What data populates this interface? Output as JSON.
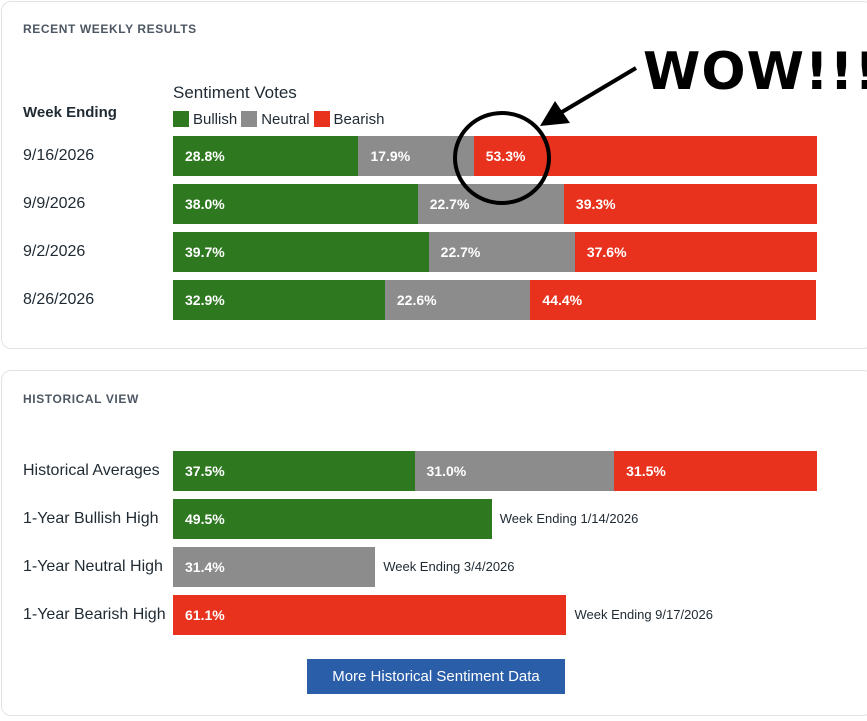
{
  "recent": {
    "section_title": "RECENT WEEKLY RESULTS",
    "week_ending_header": "Week Ending",
    "sentiment_header": "Sentiment Votes",
    "legend": [
      {
        "label": "Bullish",
        "color": "#2e7820"
      },
      {
        "label": "Neutral",
        "color": "#8c8c8c"
      },
      {
        "label": "Bearish",
        "color": "#e8321e"
      }
    ]
  },
  "historical": {
    "section_title": "HISTORICAL VIEW",
    "more_button_label": "More Historical Sentiment Data"
  },
  "annotation": {
    "text": "WOW!!!"
  },
  "chart_data": [
    {
      "type": "bar",
      "stacked": true,
      "title": "",
      "categories": [
        "9/16/2026",
        "9/9/2026",
        "9/2/2026",
        "8/26/2026"
      ],
      "series": [
        {
          "name": "Bullish",
          "values": [
            28.8,
            38.0,
            39.7,
            32.9
          ],
          "labels": [
            "28.8%",
            "38.0%",
            "39.7%",
            "32.9%"
          ],
          "color": "#2e7820"
        },
        {
          "name": "Neutral",
          "values": [
            17.9,
            22.7,
            22.7,
            22.6
          ],
          "labels": [
            "17.9%",
            "22.7%",
            "22.7%",
            "22.6%"
          ],
          "color": "#8c8c8c"
        },
        {
          "name": "Bearish",
          "values": [
            53.3,
            39.3,
            37.6,
            44.4
          ],
          "labels": [
            "53.3%",
            "39.3%",
            "37.6%",
            "44.4%"
          ],
          "color": "#e8321e"
        }
      ],
      "xlim": [
        0,
        100
      ],
      "highlight": {
        "category": "9/16/2026",
        "series": "Bearish"
      }
    },
    {
      "type": "bar",
      "stacked": true,
      "title": "",
      "xlim": [
        0,
        100
      ],
      "rows": [
        {
          "label": "Historical Averages",
          "segments": [
            {
              "series": "Bullish",
              "value": 37.5,
              "text": "37.5%"
            },
            {
              "series": "Neutral",
              "value": 31.0,
              "text": "31.0%"
            },
            {
              "series": "Bearish",
              "value": 31.5,
              "text": "31.5%"
            }
          ],
          "note": ""
        },
        {
          "label": "1-Year Bullish High",
          "segments": [
            {
              "series": "Bullish",
              "value": 49.5,
              "text": "49.5%"
            }
          ],
          "note": "Week Ending 1/14/2026"
        },
        {
          "label": "1-Year Neutral High",
          "segments": [
            {
              "series": "Neutral",
              "value": 31.4,
              "text": "31.4%"
            }
          ],
          "note": "Week Ending 3/4/2026"
        },
        {
          "label": "1-Year Bearish High",
          "segments": [
            {
              "series": "Bearish",
              "value": 61.1,
              "text": "61.1%"
            }
          ],
          "note": "Week Ending 9/17/2026"
        }
      ]
    }
  ]
}
